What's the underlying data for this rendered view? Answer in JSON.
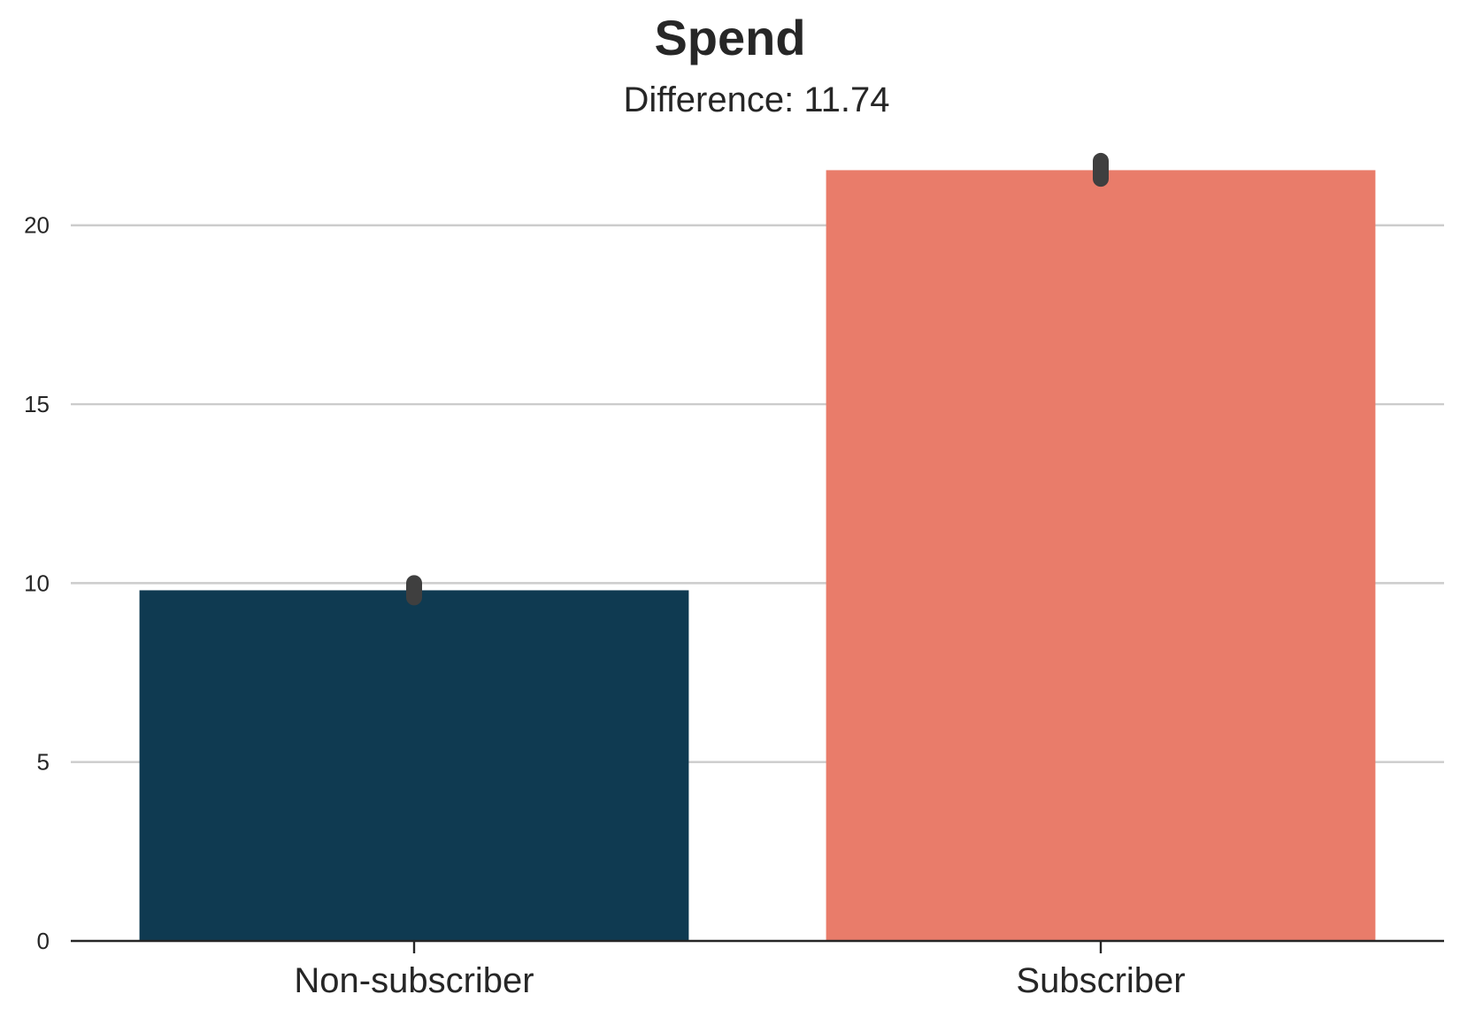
{
  "chart_data": {
    "type": "bar",
    "title": "Spend",
    "subtitle": "Difference: 11.74",
    "xlabel": "",
    "ylabel": "",
    "categories": [
      "Non-subscriber",
      "Subscriber"
    ],
    "values": [
      9.8,
      21.54
    ],
    "error_bars": [
      {
        "low": 9.6,
        "high": 10.0
      },
      {
        "low": 21.3,
        "high": 21.8
      }
    ],
    "colors": [
      "#0f3a51",
      "#e97c6a"
    ],
    "error_bar_color": "#3f3f3f",
    "ylim": [
      0,
      21.6
    ],
    "yticks": [
      0,
      5,
      10,
      15,
      20
    ],
    "grid": "horizontal",
    "grid_color": "#cccccc",
    "axis_color": "#262626"
  }
}
